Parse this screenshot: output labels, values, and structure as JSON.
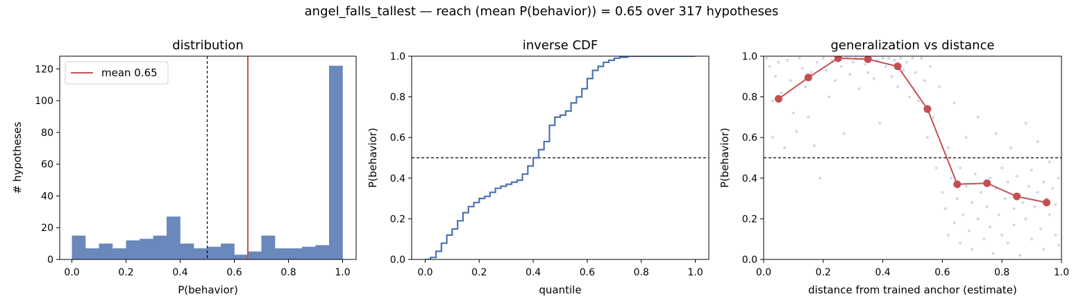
{
  "suptitle": "angel_falls_tallest  —  reach (mean P(behavior)) = 0.65  over 317 hypotheses",
  "colors": {
    "hist": "#6a88bc",
    "mean": "#c44e52",
    "cdf": "#4c72b0",
    "points": "#a9b6db",
    "threshold": "#000000"
  },
  "chart_data": [
    {
      "type": "bar",
      "title": "distribution",
      "xlabel": "P(behavior)",
      "ylabel": "# hypotheses",
      "xlim": [
        -0.045,
        1.05
      ],
      "ylim": [
        0,
        128
      ],
      "xticks": [
        "0.0",
        "0.2",
        "0.4",
        "0.6",
        "0.8",
        "1.0"
      ],
      "yticks": [
        "0",
        "20",
        "40",
        "60",
        "80",
        "100",
        "120"
      ],
      "bin_edges": [
        0.0,
        0.05,
        0.1,
        0.15,
        0.2,
        0.25,
        0.3,
        0.35,
        0.4,
        0.45,
        0.5,
        0.55,
        0.6,
        0.65,
        0.7,
        0.75,
        0.8,
        0.85,
        0.9,
        0.95,
        1.0
      ],
      "counts": [
        15,
        7,
        10,
        7,
        12,
        13,
        15,
        27,
        10,
        7,
        8,
        10,
        3,
        5,
        15,
        7,
        7,
        8,
        9,
        122
      ],
      "threshold": 0.5,
      "mean": 0.65,
      "legend": {
        "label": "mean 0.65",
        "loc": "upper left"
      }
    },
    {
      "type": "line",
      "title": "inverse CDF",
      "xlabel": "quantile",
      "ylabel": "P(behavior)",
      "xlim": [
        -0.05,
        1.05
      ],
      "ylim": [
        0,
        1
      ],
      "xticks": [
        "0.0",
        "0.2",
        "0.4",
        "0.6",
        "0.8",
        "1.0"
      ],
      "yticks": [
        "0.0",
        "0.2",
        "0.4",
        "0.6",
        "0.8",
        "1.0"
      ],
      "x": [
        0.0,
        0.02,
        0.04,
        0.06,
        0.08,
        0.1,
        0.12,
        0.14,
        0.16,
        0.18,
        0.2,
        0.22,
        0.24,
        0.26,
        0.28,
        0.3,
        0.32,
        0.34,
        0.36,
        0.38,
        0.4,
        0.42,
        0.44,
        0.46,
        0.48,
        0.5,
        0.52,
        0.54,
        0.56,
        0.58,
        0.6,
        0.62,
        0.64,
        0.66,
        0.68,
        0.7,
        0.72,
        0.75,
        0.8,
        0.9,
        1.0
      ],
      "y": [
        0.0,
        0.01,
        0.04,
        0.08,
        0.12,
        0.15,
        0.19,
        0.23,
        0.26,
        0.28,
        0.3,
        0.31,
        0.33,
        0.35,
        0.36,
        0.37,
        0.38,
        0.39,
        0.42,
        0.46,
        0.5,
        0.54,
        0.58,
        0.66,
        0.7,
        0.71,
        0.73,
        0.77,
        0.8,
        0.84,
        0.89,
        0.93,
        0.95,
        0.97,
        0.98,
        0.99,
        0.995,
        1.0,
        1.0,
        1.0,
        1.0
      ],
      "threshold": 0.5
    },
    {
      "type": "scatter",
      "title": "generalization vs distance",
      "xlabel": "distance from trained anchor (estimate)",
      "ylabel": "P(behavior)",
      "xlim": [
        0,
        1
      ],
      "ylim": [
        0,
        1
      ],
      "xticks": [
        "0.0",
        "0.2",
        "0.4",
        "0.6",
        "0.8",
        "1.0"
      ],
      "yticks": [
        "0.0",
        "0.2",
        "0.4",
        "0.6",
        "0.8",
        "1.0"
      ],
      "line": {
        "x": [
          0.05,
          0.15,
          0.25,
          0.35,
          0.45,
          0.55,
          0.65,
          0.75,
          0.85,
          0.95
        ],
        "y": [
          0.79,
          0.895,
          0.99,
          0.985,
          0.95,
          0.74,
          0.37,
          0.375,
          0.31,
          0.28
        ]
      },
      "points": [
        [
          0.01,
          0.99
        ],
        [
          0.02,
          0.95
        ],
        [
          0.03,
          0.78
        ],
        [
          0.03,
          0.6
        ],
        [
          0.04,
          0.9
        ],
        [
          0.05,
          0.97
        ],
        [
          0.06,
          0.82
        ],
        [
          0.07,
          0.55
        ],
        [
          0.08,
          0.98
        ],
        [
          0.09,
          0.88
        ],
        [
          0.1,
          0.72
        ],
        [
          0.11,
          0.63
        ],
        [
          0.12,
          0.99
        ],
        [
          0.13,
          0.94
        ],
        [
          0.14,
          0.85
        ],
        [
          0.15,
          0.7
        ],
        [
          0.16,
          0.92
        ],
        [
          0.17,
          0.56
        ],
        [
          0.18,
          0.97
        ],
        [
          0.19,
          0.4
        ],
        [
          0.2,
          0.99
        ],
        [
          0.21,
          0.93
        ],
        [
          0.22,
          0.8
        ],
        [
          0.23,
          0.98
        ],
        [
          0.24,
          0.88
        ],
        [
          0.25,
          0.99
        ],
        [
          0.26,
          0.95
        ],
        [
          0.27,
          0.62
        ],
        [
          0.28,
          0.99
        ],
        [
          0.29,
          0.91
        ],
        [
          0.3,
          0.97
        ],
        [
          0.31,
          0.99
        ],
        [
          0.32,
          0.84
        ],
        [
          0.33,
          0.99
        ],
        [
          0.34,
          0.96
        ],
        [
          0.35,
          0.92
        ],
        [
          0.36,
          0.99
        ],
        [
          0.37,
          0.89
        ],
        [
          0.38,
          0.98
        ],
        [
          0.39,
          0.67
        ],
        [
          0.4,
          0.99
        ],
        [
          0.41,
          0.95
        ],
        [
          0.42,
          0.99
        ],
        [
          0.43,
          0.9
        ],
        [
          0.44,
          0.98
        ],
        [
          0.45,
          0.85
        ],
        [
          0.46,
          0.99
        ],
        [
          0.47,
          0.93
        ],
        [
          0.48,
          0.97
        ],
        [
          0.49,
          0.8
        ],
        [
          0.5,
          0.99
        ],
        [
          0.51,
          0.92
        ],
        [
          0.52,
          0.78
        ],
        [
          0.53,
          0.99
        ],
        [
          0.54,
          0.88
        ],
        [
          0.55,
          0.6
        ],
        [
          0.56,
          0.95
        ],
        [
          0.57,
          0.7
        ],
        [
          0.58,
          0.45
        ],
        [
          0.59,
          0.85
        ],
        [
          0.6,
          0.33
        ],
        [
          0.61,
          0.25
        ],
        [
          0.62,
          0.12
        ],
        [
          0.62,
          0.55
        ],
        [
          0.63,
          0.4
        ],
        [
          0.64,
          0.18
        ],
        [
          0.64,
          0.77
        ],
        [
          0.65,
          0.3
        ],
        [
          0.66,
          0.08
        ],
        [
          0.66,
          0.45
        ],
        [
          0.67,
          0.22
        ],
        [
          0.68,
          0.36
        ],
        [
          0.68,
          0.6
        ],
        [
          0.69,
          0.14
        ],
        [
          0.7,
          0.28
        ],
        [
          0.7,
          0.05
        ],
        [
          0.71,
          0.42
        ],
        [
          0.72,
          0.2
        ],
        [
          0.72,
          0.7
        ],
        [
          0.73,
          0.33
        ],
        [
          0.74,
          0.1
        ],
        [
          0.74,
          0.5
        ],
        [
          0.75,
          0.26
        ],
        [
          0.76,
          0.4
        ],
        [
          0.76,
          0.16
        ],
        [
          0.77,
          0.03
        ],
        [
          0.78,
          0.35
        ],
        [
          0.78,
          0.62
        ],
        [
          0.79,
          0.22
        ],
        [
          0.8,
          0.45
        ],
        [
          0.8,
          0.12
        ],
        [
          0.81,
          0.3
        ],
        [
          0.82,
          0.38
        ],
        [
          0.82,
          0.08
        ],
        [
          0.83,
          0.55
        ],
        [
          0.84,
          0.25
        ],
        [
          0.84,
          0.17
        ],
        [
          0.85,
          0.41
        ],
        [
          0.86,
          0.32
        ],
        [
          0.86,
          0.02
        ],
        [
          0.87,
          0.28
        ],
        [
          0.88,
          0.67
        ],
        [
          0.88,
          0.2
        ],
        [
          0.89,
          0.36
        ],
        [
          0.9,
          0.1
        ],
        [
          0.9,
          0.44
        ],
        [
          0.91,
          0.26
        ],
        [
          0.92,
          0.33
        ],
        [
          0.92,
          0.58
        ],
        [
          0.93,
          0.15
        ],
        [
          0.94,
          0.38
        ],
        [
          0.94,
          0.05
        ],
        [
          0.95,
          0.3
        ],
        [
          0.96,
          0.22
        ],
        [
          0.96,
          0.48
        ],
        [
          0.97,
          0.35
        ],
        [
          0.98,
          0.12
        ],
        [
          0.98,
          0.27
        ],
        [
          0.99,
          0.4
        ],
        [
          0.99,
          0.07
        ]
      ],
      "threshold": 0.5
    }
  ]
}
